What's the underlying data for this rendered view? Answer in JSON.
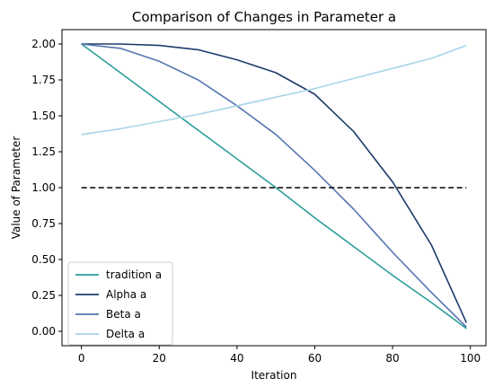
{
  "chart_data": {
    "type": "line",
    "title": "Comparison of Changes in Parameter a",
    "xlabel": "Iteration",
    "ylabel": "Value of Parameter",
    "xlim": [
      -5,
      104
    ],
    "ylim": [
      -0.1,
      2.1
    ],
    "xticks": [
      0,
      20,
      40,
      60,
      80,
      100
    ],
    "xtick_labels": [
      "0",
      "20",
      "40",
      "60",
      "80",
      "100"
    ],
    "yticks": [
      0.0,
      0.25,
      0.5,
      0.75,
      1.0,
      1.25,
      1.5,
      1.75,
      2.0
    ],
    "ytick_labels": [
      "0.00",
      "0.25",
      "0.50",
      "0.75",
      "1.00",
      "1.25",
      "1.50",
      "1.75",
      "2.00"
    ],
    "grid": false,
    "legend_position": "lower-left",
    "x": [
      0,
      10,
      20,
      30,
      40,
      50,
      60,
      70,
      80,
      90,
      99
    ],
    "series": [
      {
        "name": "tradition a",
        "color": "#2a9d98",
        "style": "solid",
        "values": [
          2.0,
          1.8,
          1.6,
          1.4,
          1.2,
          1.0,
          0.79,
          0.59,
          0.39,
          0.2,
          0.02
        ]
      },
      {
        "name": "Alpha a",
        "color": "#1d3b6a",
        "style": "solid",
        "values": [
          2.0,
          2.0,
          1.99,
          1.96,
          1.89,
          1.8,
          1.65,
          1.39,
          1.04,
          0.6,
          0.06
        ]
      },
      {
        "name": "Beta a",
        "color": "#5574b0",
        "style": "solid",
        "values": [
          2.0,
          1.97,
          1.88,
          1.75,
          1.57,
          1.37,
          1.12,
          0.85,
          0.55,
          0.27,
          0.03
        ]
      },
      {
        "name": "Delta a",
        "color": "#a8d5e8",
        "style": "solid",
        "values": [
          1.37,
          1.41,
          1.46,
          1.51,
          1.57,
          1.63,
          1.69,
          1.76,
          1.83,
          1.9,
          1.99
        ]
      },
      {
        "name": "",
        "color": "#000000",
        "style": "dashed",
        "values": [
          1.0,
          1.0,
          1.0,
          1.0,
          1.0,
          1.0,
          1.0,
          1.0,
          1.0,
          1.0,
          1.0
        ]
      }
    ]
  }
}
